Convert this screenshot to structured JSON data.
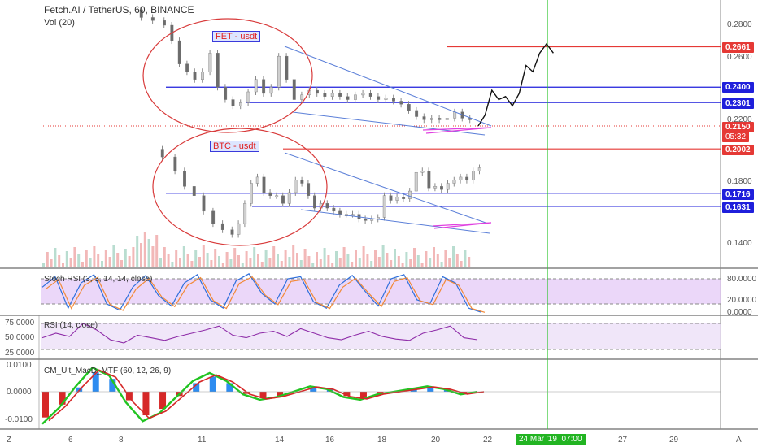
{
  "header": {
    "symbol_line": "Fetch.AI / TetherUS, 60, BINANCE",
    "volume_label": "Vol (20)"
  },
  "annotations": {
    "fet_label": "FET - usdt",
    "btc_label": "BTC - usdt",
    "countdown": "05:32",
    "cursor_date": "24 Mar '19",
    "cursor_time": "07:00"
  },
  "price_axis": {
    "ticks": [
      "0.2800",
      "0.2600",
      "0.2200",
      "0.1800",
      "0.1400"
    ],
    "tagged_levels": [
      {
        "value": "0.2661",
        "color": "#e53935"
      },
      {
        "value": "0.2400",
        "color": "#1f1fdb"
      },
      {
        "value": "0.2301",
        "color": "#1f1fdb"
      },
      {
        "value": "0.2150",
        "color": "#e53935"
      },
      {
        "value": "0.2002",
        "color": "#e53935"
      },
      {
        "value": "0.1716",
        "color": "#1f1fdb"
      },
      {
        "value": "0.1631",
        "color": "#1f1fdb"
      }
    ]
  },
  "stoch_pane": {
    "label": "Stoch RSI (3, 3, 14, 14, close)",
    "ticks": [
      "80.0000",
      "20.0000",
      "0.0000"
    ]
  },
  "rsi_pane": {
    "label": "RSI (14, close)",
    "ticks": [
      "75.0000",
      "50.0000",
      "25.0000"
    ]
  },
  "macd_pane": {
    "label": "CM_Ult_MacD_MTF (60, 12, 26, 9)",
    "ticks": [
      "0.0100",
      "0.0000",
      "-0.0100"
    ]
  },
  "time_axis": {
    "ticks": [
      "6",
      "8",
      "11",
      "14",
      "16",
      "18",
      "20",
      "22",
      "27",
      "29"
    ],
    "left_button": "Z",
    "right_button": "A"
  },
  "chart_data": {
    "type": "candlestick",
    "price_range": [
      0.13,
      0.29
    ],
    "horizontal_levels": [
      0.2661,
      0.24,
      0.2301,
      0.215,
      0.2002,
      0.1716,
      0.1631
    ],
    "fet_price_path": [
      [
        0,
        0.29
      ],
      [
        6,
        0.285
      ],
      [
        12,
        0.283
      ],
      [
        16,
        0.28
      ],
      [
        20,
        0.27
      ],
      [
        24,
        0.255
      ],
      [
        28,
        0.25
      ],
      [
        32,
        0.245
      ],
      [
        36,
        0.25
      ],
      [
        40,
        0.262
      ],
      [
        44,
        0.24
      ],
      [
        48,
        0.232
      ],
      [
        52,
        0.228
      ],
      [
        56,
        0.23
      ],
      [
        60,
        0.237
      ],
      [
        64,
        0.245
      ],
      [
        68,
        0.236
      ],
      [
        72,
        0.24
      ],
      [
        76,
        0.26
      ],
      [
        80,
        0.245
      ],
      [
        84,
        0.232
      ],
      [
        88,
        0.235
      ],
      [
        92,
        0.238
      ],
      [
        96,
        0.236
      ],
      [
        100,
        0.234
      ],
      [
        104,
        0.236
      ],
      [
        108,
        0.234
      ],
      [
        112,
        0.232
      ],
      [
        116,
        0.235
      ],
      [
        120,
        0.236
      ],
      [
        124,
        0.234
      ],
      [
        128,
        0.232
      ],
      [
        132,
        0.233
      ],
      [
        136,
        0.231
      ],
      [
        140,
        0.229
      ],
      [
        144,
        0.225
      ],
      [
        148,
        0.221
      ],
      [
        152,
        0.219
      ],
      [
        156,
        0.22
      ],
      [
        160,
        0.219
      ],
      [
        164,
        0.22
      ],
      [
        168,
        0.224
      ],
      [
        172,
        0.22
      ],
      [
        176,
        0.219
      ]
    ],
    "btc_price_path": [
      [
        0,
        0.2
      ],
      [
        8,
        0.195
      ],
      [
        14,
        0.186
      ],
      [
        20,
        0.176
      ],
      [
        26,
        0.17
      ],
      [
        32,
        0.16
      ],
      [
        38,
        0.152
      ],
      [
        44,
        0.148
      ],
      [
        48,
        0.145
      ],
      [
        52,
        0.152
      ],
      [
        56,
        0.165
      ],
      [
        60,
        0.178
      ],
      [
        64,
        0.182
      ],
      [
        68,
        0.172
      ],
      [
        72,
        0.17
      ],
      [
        76,
        0.17
      ],
      [
        80,
        0.165
      ],
      [
        84,
        0.172
      ],
      [
        88,
        0.18
      ],
      [
        92,
        0.178
      ],
      [
        96,
        0.17
      ],
      [
        100,
        0.162
      ],
      [
        104,
        0.165
      ],
      [
        108,
        0.162
      ],
      [
        112,
        0.16
      ],
      [
        116,
        0.158
      ],
      [
        120,
        0.158
      ],
      [
        124,
        0.158
      ],
      [
        128,
        0.155
      ],
      [
        132,
        0.154
      ],
      [
        136,
        0.155
      ],
      [
        140,
        0.156
      ],
      [
        144,
        0.17
      ],
      [
        148,
        0.167
      ],
      [
        152,
        0.169
      ],
      [
        156,
        0.168
      ],
      [
        160,
        0.173
      ],
      [
        164,
        0.185
      ],
      [
        168,
        0.186
      ],
      [
        172,
        0.175
      ],
      [
        176,
        0.176
      ],
      [
        180,
        0.174
      ],
      [
        184,
        0.178
      ],
      [
        188,
        0.18
      ],
      [
        192,
        0.182
      ],
      [
        196,
        0.18
      ],
      [
        200,
        0.186
      ],
      [
        204,
        0.188
      ]
    ],
    "projection_path": [
      [
        0,
        0.215
      ],
      [
        4,
        0.222
      ],
      [
        8,
        0.238
      ],
      [
        12,
        0.232
      ],
      [
        16,
        0.234
      ],
      [
        20,
        0.228
      ],
      [
        24,
        0.236
      ],
      [
        28,
        0.254
      ],
      [
        32,
        0.25
      ],
      [
        36,
        0.262
      ],
      [
        40,
        0.268
      ],
      [
        44,
        0.262
      ]
    ],
    "indicator_series": {
      "stoch_rsi": [
        60,
        85,
        10,
        70,
        90,
        20,
        5,
        60,
        88,
        40,
        15,
        70,
        90,
        30,
        10,
        75,
        92,
        45,
        20,
        80,
        85,
        25,
        10,
        65,
        88,
        50,
        15,
        80,
        90,
        30,
        20,
        85,
        70,
        10,
        0
      ],
      "rsi": [
        48,
        55,
        50,
        70,
        60,
        45,
        40,
        52,
        48,
        44,
        50,
        55,
        60,
        66,
        52,
        48,
        55,
        58,
        50,
        62,
        55,
        48,
        45,
        52,
        58,
        50,
        46,
        44,
        55,
        60,
        66,
        48,
        45
      ],
      "macd": [
        -0.012,
        -0.006,
        0.002,
        0.009,
        0.006,
        -0.004,
        -0.011,
        -0.008,
        -0.002,
        0.004,
        0.007,
        0.004,
        -0.001,
        -0.003,
        -0.002,
        0.0,
        0.002,
        0.001,
        -0.002,
        -0.003,
        -0.001,
        0.0,
        0.001,
        0.002,
        0.001,
        -0.001,
        0.0
      ]
    }
  }
}
